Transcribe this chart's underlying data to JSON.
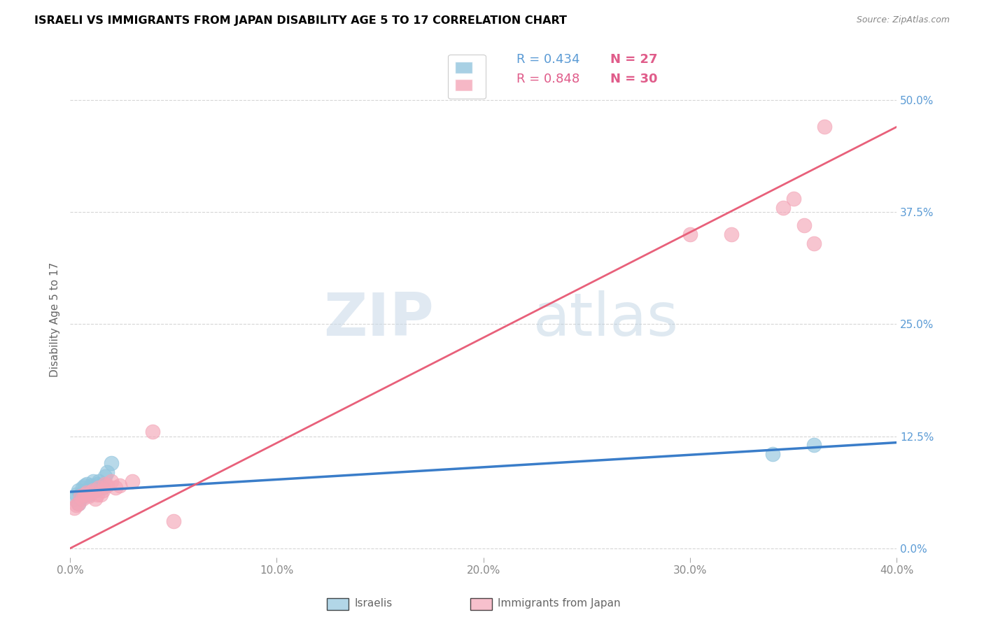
{
  "title": "ISRAELI VS IMMIGRANTS FROM JAPAN DISABILITY AGE 5 TO 17 CORRELATION CHART",
  "source": "Source: ZipAtlas.com",
  "ylabel": "Disability Age 5 to 17",
  "xlim": [
    0.0,
    0.4
  ],
  "ylim": [
    -0.01,
    0.52
  ],
  "xlabel_tick_vals": [
    0.0,
    0.1,
    0.2,
    0.3,
    0.4
  ],
  "xlabel_tick_labels": [
    "0.0%",
    "10.0%",
    "20.0%",
    "30.0%",
    "40.0%"
  ],
  "ylabel_tick_vals": [
    0.0,
    0.125,
    0.25,
    0.375,
    0.5
  ],
  "ylabel_tick_labels": [
    "0.0%",
    "12.5%",
    "25.0%",
    "37.5%",
    "50.0%"
  ],
  "legend_blue_r": "R = 0.434",
  "legend_blue_n": "N = 27",
  "legend_pink_r": "R = 0.848",
  "legend_pink_n": "N = 30",
  "blue_scatter_color": "#92c5de",
  "pink_scatter_color": "#f4a6b8",
  "blue_line_color": "#3a7dc9",
  "pink_line_color": "#e8607a",
  "ytick_color": "#5b9bd5",
  "legend_r_color_blue": "#5b9bd5",
  "legend_n_color_blue": "#e05c8a",
  "legend_r_color_pink": "#e05c8a",
  "legend_n_color_pink": "#e05c8a",
  "watermark_zip": "ZIP",
  "watermark_atlas": "atlas",
  "israelis_label": "Israelis",
  "japan_label": "Immigrants from Japan",
  "israelis_x": [
    0.002,
    0.003,
    0.004,
    0.004,
    0.005,
    0.005,
    0.006,
    0.006,
    0.007,
    0.007,
    0.008,
    0.008,
    0.009,
    0.009,
    0.01,
    0.01,
    0.011,
    0.012,
    0.013,
    0.014,
    0.015,
    0.016,
    0.017,
    0.018,
    0.02,
    0.34,
    0.36
  ],
  "israelis_y": [
    0.055,
    0.06,
    0.05,
    0.065,
    0.055,
    0.06,
    0.06,
    0.068,
    0.062,
    0.07,
    0.065,
    0.072,
    0.06,
    0.065,
    0.07,
    0.068,
    0.075,
    0.065,
    0.072,
    0.075,
    0.07,
    0.068,
    0.08,
    0.085,
    0.095,
    0.105,
    0.115
  ],
  "japan_x": [
    0.002,
    0.003,
    0.004,
    0.005,
    0.006,
    0.007,
    0.008,
    0.009,
    0.01,
    0.011,
    0.012,
    0.013,
    0.014,
    0.015,
    0.016,
    0.017,
    0.018,
    0.02,
    0.022,
    0.024,
    0.03,
    0.04,
    0.05,
    0.3,
    0.32,
    0.345,
    0.35,
    0.355,
    0.36,
    0.365
  ],
  "japan_y": [
    0.045,
    0.048,
    0.05,
    0.058,
    0.055,
    0.06,
    0.062,
    0.058,
    0.062,
    0.065,
    0.055,
    0.06,
    0.068,
    0.06,
    0.065,
    0.072,
    0.07,
    0.075,
    0.068,
    0.07,
    0.075,
    0.13,
    0.03,
    0.35,
    0.35,
    0.38,
    0.39,
    0.36,
    0.34,
    0.47
  ],
  "blue_line_x0": 0.0,
  "blue_line_y0": 0.063,
  "blue_line_x1": 0.4,
  "blue_line_y1": 0.118,
  "pink_line_x0": 0.0,
  "pink_line_y0": 0.0,
  "pink_line_x1": 0.4,
  "pink_line_y1": 0.47
}
